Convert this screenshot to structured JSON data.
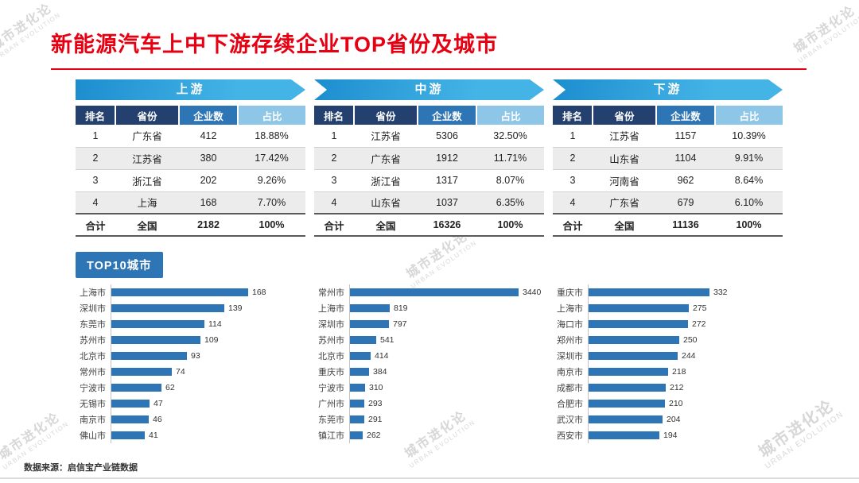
{
  "page": {
    "title": "新能源汽车上中下游存续企业TOP省份及城市",
    "top10_label": "TOP10城市",
    "source_note": "数据来源：启信宝产业链数据",
    "watermark": {
      "line1": "城市进化论",
      "line2": "URBAN EVOLUTION"
    }
  },
  "colors": {
    "title_red": "#e60012",
    "banner_blue": "#44b3e6",
    "banner_blue_dark": "#1c8ecf",
    "header_navy": "#23406f",
    "header_mid": "#2e75b6",
    "header_light": "#8ec6e8",
    "badge_blue": "#2e75b6",
    "bar_blue": "#2e75b6",
    "row_alt": "#ececec"
  },
  "tables": [
    {
      "banner": "上游",
      "headers": [
        "排名",
        "省份",
        "企业数",
        "占比"
      ],
      "rows": [
        [
          "1",
          "广东省",
          "412",
          "18.88%"
        ],
        [
          "2",
          "江苏省",
          "380",
          "17.42%"
        ],
        [
          "3",
          "浙江省",
          "202",
          "9.26%"
        ],
        [
          "4",
          "上海",
          "168",
          "7.70%"
        ]
      ],
      "total": [
        "合计",
        "全国",
        "2182",
        "100%"
      ]
    },
    {
      "banner": "中游",
      "headers": [
        "排名",
        "省份",
        "企业数",
        "占比"
      ],
      "rows": [
        [
          "1",
          "江苏省",
          "5306",
          "32.50%"
        ],
        [
          "2",
          "广东省",
          "1912",
          "11.71%"
        ],
        [
          "3",
          "浙江省",
          "1317",
          "8.07%"
        ],
        [
          "4",
          "山东省",
          "1037",
          "6.35%"
        ]
      ],
      "total": [
        "合计",
        "全国",
        "16326",
        "100%"
      ]
    },
    {
      "banner": "下游",
      "headers": [
        "排名",
        "省份",
        "企业数",
        "占比"
      ],
      "rows": [
        [
          "1",
          "江苏省",
          "1157",
          "10.39%"
        ],
        [
          "2",
          "山东省",
          "1104",
          "9.91%"
        ],
        [
          "3",
          "河南省",
          "962",
          "8.64%"
        ],
        [
          "4",
          "广东省",
          "679",
          "6.10%"
        ]
      ],
      "total": [
        "合计",
        "全国",
        "11136",
        "100%"
      ]
    }
  ],
  "chart_data": [
    {
      "type": "bar",
      "group": "上游",
      "orientation": "horizontal",
      "value_labels": "end",
      "categories": [
        "上海市",
        "深圳市",
        "东莞市",
        "苏州市",
        "北京市",
        "常州市",
        "宁波市",
        "无锡市",
        "南京市",
        "佛山市"
      ],
      "values": [
        168,
        139,
        114,
        109,
        93,
        74,
        62,
        47,
        46,
        41
      ]
    },
    {
      "type": "bar",
      "group": "中游",
      "orientation": "horizontal",
      "value_labels": "end",
      "categories": [
        "常州市",
        "上海市",
        "深圳市",
        "苏州市",
        "北京市",
        "重庆市",
        "宁波市",
        "广州市",
        "东莞市",
        "镇江市"
      ],
      "values": [
        3440,
        819,
        797,
        541,
        414,
        384,
        310,
        293,
        291,
        262
      ]
    },
    {
      "type": "bar",
      "group": "下游",
      "orientation": "horizontal",
      "value_labels": "end",
      "categories": [
        "重庆市",
        "上海市",
        "海口市",
        "郑州市",
        "深圳市",
        "南京市",
        "成都市",
        "合肥市",
        "武汉市",
        "西安市"
      ],
      "values": [
        332,
        275,
        272,
        250,
        244,
        218,
        212,
        210,
        204,
        194
      ]
    }
  ]
}
